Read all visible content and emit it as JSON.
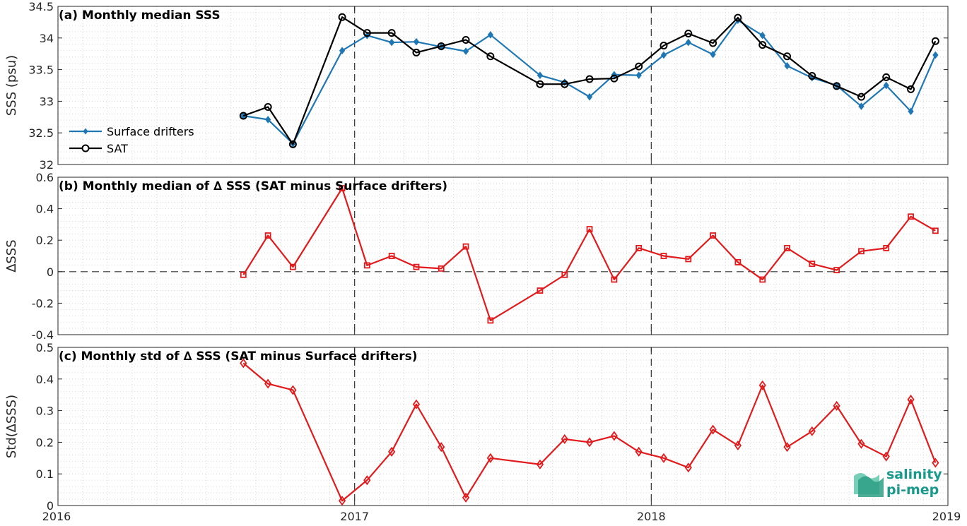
{
  "chart_data": [
    {
      "type": "line",
      "title": "(a) Monthly median SSS",
      "xlabel": "",
      "ylabel": "SSS (psu)",
      "xlim": [
        2016,
        2019
      ],
      "ylim": [
        32,
        34.5
      ],
      "yticks": [
        "32",
        "32.5",
        "33",
        "33.5",
        "34",
        "34.5"
      ],
      "legend_position": "left",
      "grid": true,
      "series": [
        {
          "name": "Surface drifters",
          "color": "#1f77b4",
          "marker": "diamond-filled",
          "points": [
            [
              2016.625,
              32.77
            ],
            [
              2016.708,
              32.71
            ],
            [
              2016.792,
              32.33
            ],
            [
              2016.958,
              33.8
            ],
            [
              2017.042,
              34.04
            ],
            [
              2017.125,
              33.93
            ],
            [
              2017.208,
              33.94
            ],
            [
              2017.292,
              33.86
            ],
            [
              2017.375,
              33.79
            ],
            [
              2017.458,
              34.05
            ],
            [
              2017.625,
              33.41
            ],
            [
              2017.708,
              33.3
            ],
            [
              2017.792,
              33.07
            ],
            [
              2017.875,
              33.42
            ],
            [
              2017.958,
              33.41
            ],
            [
              2018.042,
              33.73
            ],
            [
              2018.125,
              33.93
            ],
            [
              2018.208,
              33.74
            ],
            [
              2018.292,
              34.28
            ],
            [
              2018.375,
              34.04
            ],
            [
              2018.458,
              33.56
            ],
            [
              2018.542,
              33.37
            ],
            [
              2018.625,
              33.25
            ],
            [
              2018.708,
              32.92
            ],
            [
              2018.792,
              33.25
            ],
            [
              2018.875,
              32.84
            ],
            [
              2018.958,
              33.73
            ]
          ]
        },
        {
          "name": "SAT",
          "color": "#000000",
          "marker": "circle-open",
          "points": [
            [
              2016.625,
              32.77
            ],
            [
              2016.708,
              32.91
            ],
            [
              2016.792,
              32.32
            ],
            [
              2016.958,
              34.33
            ],
            [
              2017.042,
              34.08
            ],
            [
              2017.125,
              34.08
            ],
            [
              2017.208,
              33.77
            ],
            [
              2017.292,
              33.87
            ],
            [
              2017.375,
              33.97
            ],
            [
              2017.458,
              33.71
            ],
            [
              2017.625,
              33.27
            ],
            [
              2017.708,
              33.27
            ],
            [
              2017.792,
              33.35
            ],
            [
              2017.875,
              33.36
            ],
            [
              2017.958,
              33.55
            ],
            [
              2018.042,
              33.88
            ],
            [
              2018.125,
              34.07
            ],
            [
              2018.208,
              33.92
            ],
            [
              2018.292,
              34.32
            ],
            [
              2018.375,
              33.89
            ],
            [
              2018.458,
              33.71
            ],
            [
              2018.542,
              33.4
            ],
            [
              2018.625,
              33.24
            ],
            [
              2018.708,
              33.07
            ],
            [
              2018.792,
              33.38
            ],
            [
              2018.875,
              33.19
            ],
            [
              2018.958,
              33.95
            ]
          ]
        }
      ]
    },
    {
      "type": "line",
      "title": "(b) Monthly median of ∆ SSS (SAT minus Surface drifters)",
      "xlabel": "",
      "ylabel": "∆SSS",
      "xlim": [
        2016,
        2019
      ],
      "ylim": [
        -0.4,
        0.6
      ],
      "yticks": [
        "-0.4",
        "-0.2",
        "0",
        "0.2",
        "0.4",
        "0.6"
      ],
      "zero_line": true,
      "grid": true,
      "series": [
        {
          "color": "#e31a1c",
          "marker": "square-open",
          "points": [
            [
              2016.625,
              -0.02
            ],
            [
              2016.708,
              0.23
            ],
            [
              2016.792,
              0.03
            ],
            [
              2016.958,
              0.53
            ],
            [
              2017.042,
              0.04
            ],
            [
              2017.125,
              0.1
            ],
            [
              2017.208,
              0.03
            ],
            [
              2017.292,
              0.02
            ],
            [
              2017.375,
              0.16
            ],
            [
              2017.458,
              -0.31
            ],
            [
              2017.625,
              -0.12
            ],
            [
              2017.708,
              -0.02
            ],
            [
              2017.792,
              0.27
            ],
            [
              2017.875,
              -0.05
            ],
            [
              2017.958,
              0.15
            ],
            [
              2018.042,
              0.1
            ],
            [
              2018.125,
              0.08
            ],
            [
              2018.208,
              0.23
            ],
            [
              2018.292,
              0.06
            ],
            [
              2018.375,
              -0.05
            ],
            [
              2018.458,
              0.15
            ],
            [
              2018.542,
              0.05
            ],
            [
              2018.625,
              0.01
            ],
            [
              2018.708,
              0.13
            ],
            [
              2018.792,
              0.15
            ],
            [
              2018.875,
              0.35
            ],
            [
              2018.958,
              0.26
            ]
          ]
        }
      ]
    },
    {
      "type": "line",
      "title": "(c) Monthly std of ∆ SSS (SAT minus Surface drifters)",
      "xlabel": "",
      "ylabel": "Std(∆SSS)",
      "xlim": [
        2016,
        2019
      ],
      "ylim": [
        0,
        0.5
      ],
      "yticks": [
        "0",
        "0.1",
        "0.2",
        "0.3",
        "0.4",
        "0.5"
      ],
      "xticks": [
        "2016",
        "2017",
        "2018",
        "2019"
      ],
      "grid": true,
      "series": [
        {
          "color": "#e31a1c",
          "marker": "diamond-open",
          "points": [
            [
              2016.625,
              0.45
            ],
            [
              2016.708,
              0.385
            ],
            [
              2016.792,
              0.365
            ],
            [
              2016.958,
              0.015
            ],
            [
              2017.042,
              0.08
            ],
            [
              2017.125,
              0.17
            ],
            [
              2017.208,
              0.32
            ],
            [
              2017.292,
              0.185
            ],
            [
              2017.375,
              0.025
            ],
            [
              2017.458,
              0.15
            ],
            [
              2017.625,
              0.13
            ],
            [
              2017.708,
              0.21
            ],
            [
              2017.792,
              0.2
            ],
            [
              2017.875,
              0.22
            ],
            [
              2017.958,
              0.17
            ],
            [
              2018.042,
              0.15
            ],
            [
              2018.125,
              0.12
            ],
            [
              2018.208,
              0.24
            ],
            [
              2018.292,
              0.19
            ],
            [
              2018.375,
              0.38
            ],
            [
              2018.458,
              0.185
            ],
            [
              2018.542,
              0.235
            ],
            [
              2018.625,
              0.315
            ],
            [
              2018.708,
              0.195
            ],
            [
              2018.792,
              0.155
            ],
            [
              2018.875,
              0.335
            ],
            [
              2018.958,
              0.135
            ]
          ]
        }
      ]
    }
  ],
  "logo": {
    "line1": "salinity",
    "line2": "pi-mep"
  }
}
